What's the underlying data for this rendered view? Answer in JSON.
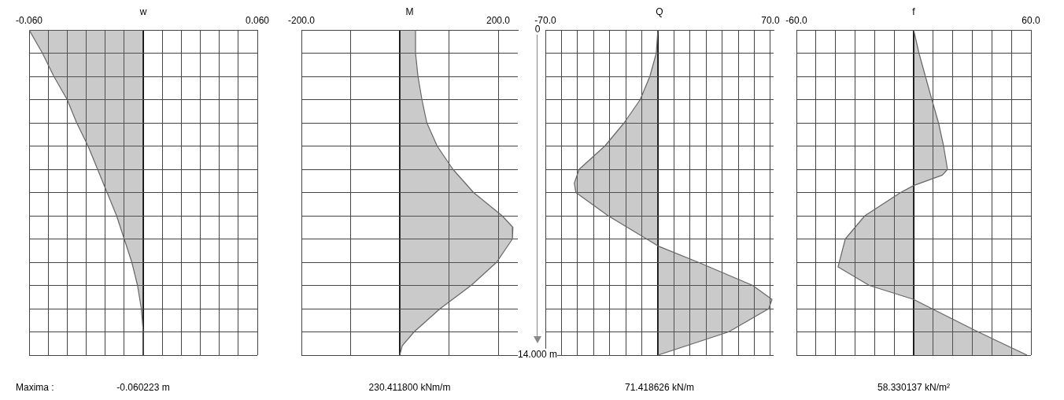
{
  "chart_data": [
    {
      "type": "area",
      "orientation": "horizontal",
      "xlabel": "w",
      "x": [
        0,
        1,
        2,
        3,
        4,
        5,
        6,
        7,
        8,
        9,
        10,
        11,
        12,
        13,
        14
      ],
      "series": [
        {
          "color": "#666666",
          "values": [
            -0.06,
            -0.053,
            -0.047,
            -0.04,
            -0.035,
            -0.029,
            -0.024,
            -0.019,
            -0.014,
            -0.01,
            -0.006,
            -0.003,
            -0.001,
            0,
            0
          ]
        }
      ],
      "xlim": [
        -0.06,
        0.06
      ],
      "xticks": [
        {
          "value": -0.06,
          "label": "-0.060"
        },
        {
          "value": -0.05,
          "label": null
        },
        {
          "value": -0.04,
          "label": null
        },
        {
          "value": -0.03,
          "label": null
        },
        {
          "value": -0.02,
          "label": null
        },
        {
          "value": -0.01,
          "label": null
        },
        {
          "value": 0,
          "label": null
        },
        {
          "value": 0.01,
          "label": null
        },
        {
          "value": 0.02,
          "label": null
        },
        {
          "value": 0.03,
          "label": null
        },
        {
          "value": 0.04,
          "label": null
        },
        {
          "value": 0.05,
          "label": null
        },
        {
          "value": 0.06,
          "label": "0.060"
        }
      ],
      "ylim": [
        14,
        0
      ],
      "yticks": [
        {
          "value": 0,
          "label": null
        },
        {
          "value": 1,
          "label": null
        },
        {
          "value": 2,
          "label": null
        },
        {
          "value": 3,
          "label": null
        },
        {
          "value": 4,
          "label": null
        },
        {
          "value": 5,
          "label": null
        },
        {
          "value": 6,
          "label": null
        },
        {
          "value": 7,
          "label": null
        },
        {
          "value": 8,
          "label": null
        },
        {
          "value": 9,
          "label": null
        },
        {
          "value": 10,
          "label": null
        },
        {
          "value": 11,
          "label": null
        },
        {
          "value": 12,
          "label": null
        },
        {
          "value": 13,
          "label": null
        },
        {
          "value": 14,
          "label": null
        }
      ],
      "tick_labels": "x",
      "grid": true,
      "legend": false,
      "annotations": [
        "Maxima :",
        "-0.060223 m"
      ]
    },
    {
      "type": "area",
      "orientation": "horizontal",
      "xlabel": "M",
      "x": [
        0,
        1,
        2,
        3,
        4,
        5,
        6,
        7,
        8,
        8.5,
        9,
        10,
        11,
        12,
        13,
        13.6,
        14
      ],
      "series": [
        {
          "color": "#666666",
          "values": [
            32,
            32,
            37,
            45,
            55,
            76,
            108,
            150,
            208,
            230,
            229,
            197,
            145,
            82,
            29,
            5,
            0
          ]
        }
      ],
      "xlim": [
        -200,
        240
      ],
      "xticks": [
        {
          "value": -200,
          "label": "-200.0"
        },
        {
          "value": -100,
          "label": null
        },
        {
          "value": 0,
          "label": null
        },
        {
          "value": 100,
          "label": null
        },
        {
          "value": 200,
          "label": "200.0"
        }
      ],
      "ylim": [
        14,
        0
      ],
      "yticks": [
        {
          "value": 0,
          "label": "0"
        },
        {
          "value": 1,
          "label": null
        },
        {
          "value": 2,
          "label": null
        },
        {
          "value": 3,
          "label": null
        },
        {
          "value": 4,
          "label": null
        },
        {
          "value": 5,
          "label": null
        },
        {
          "value": 6,
          "label": null
        },
        {
          "value": 7,
          "label": null
        },
        {
          "value": 8,
          "label": null
        },
        {
          "value": 9,
          "label": null
        },
        {
          "value": 10,
          "label": null
        },
        {
          "value": 11,
          "label": null
        },
        {
          "value": 12,
          "label": null
        },
        {
          "value": 13,
          "label": null
        },
        {
          "value": 14,
          "label": "14.000 m"
        }
      ],
      "grid": true,
      "legend": false,
      "annotations": [
        "230.411800 kNm/m"
      ]
    },
    {
      "type": "area",
      "orientation": "horizontal",
      "xlabel": "Q",
      "x": [
        0,
        1,
        2,
        3,
        4,
        5,
        6,
        6.6,
        7,
        8,
        9,
        9.3,
        10,
        11,
        11.6,
        12,
        13,
        14
      ],
      "series": [
        {
          "color": "#666666",
          "values": [
            0,
            -1,
            -5,
            -11,
            -21,
            -33,
            -49,
            -52,
            -51,
            -31,
            -7,
            0,
            25,
            59,
            71,
            69,
            44,
            0
          ]
        }
      ],
      "xlim": [
        -70,
        72
      ],
      "xticks": [
        {
          "value": -70,
          "label": "-70.0"
        },
        {
          "value": -60,
          "label": null
        },
        {
          "value": -50,
          "label": null
        },
        {
          "value": -40,
          "label": null
        },
        {
          "value": -30,
          "label": null
        },
        {
          "value": -20,
          "label": null
        },
        {
          "value": -10,
          "label": null
        },
        {
          "value": 0,
          "label": null
        },
        {
          "value": 10,
          "label": null
        },
        {
          "value": 20,
          "label": null
        },
        {
          "value": 30,
          "label": null
        },
        {
          "value": 40,
          "label": null
        },
        {
          "value": 50,
          "label": null
        },
        {
          "value": 60,
          "label": null
        },
        {
          "value": 70,
          "label": "70.0"
        }
      ],
      "ylim": [
        14,
        0
      ],
      "yticks": [
        {
          "value": 0,
          "label": null
        },
        {
          "value": 1,
          "label": null
        },
        {
          "value": 2,
          "label": null
        },
        {
          "value": 3,
          "label": null
        },
        {
          "value": 4,
          "label": null
        },
        {
          "value": 5,
          "label": null
        },
        {
          "value": 6,
          "label": null
        },
        {
          "value": 7,
          "label": null
        },
        {
          "value": 8,
          "label": null
        },
        {
          "value": 9,
          "label": null
        },
        {
          "value": 10,
          "label": null
        },
        {
          "value": 11,
          "label": null
        },
        {
          "value": 12,
          "label": null
        },
        {
          "value": 13,
          "label": null
        },
        {
          "value": 14,
          "label": null
        }
      ],
      "tick_labels": "x",
      "grid": true,
      "legend": false,
      "annotations": [
        "71.418626 kN/m"
      ]
    },
    {
      "type": "area",
      "orientation": "horizontal",
      "xlabel": "f",
      "x": [
        0,
        1,
        2,
        3,
        4,
        5,
        6,
        6.25,
        6.7,
        7,
        8,
        9,
        10.2,
        11,
        11.6,
        12,
        13,
        14
      ],
      "series": [
        {
          "color": "#666666",
          "values": [
            0,
            2.7,
            6,
            9.3,
            12.7,
            15.3,
            17.3,
            14.7,
            0,
            -6.7,
            -25,
            -35,
            -38.7,
            -22.7,
            0,
            9.3,
            33,
            58
          ]
        }
      ],
      "xlim": [
        -60,
        60
      ],
      "xticks": [
        {
          "value": -60,
          "label": "-60.0"
        },
        {
          "value": -50,
          "label": null
        },
        {
          "value": -40,
          "label": null
        },
        {
          "value": -30,
          "label": null
        },
        {
          "value": -20,
          "label": null
        },
        {
          "value": -10,
          "label": null
        },
        {
          "value": 0,
          "label": null
        },
        {
          "value": 10,
          "label": null
        },
        {
          "value": 20,
          "label": null
        },
        {
          "value": 30,
          "label": null
        },
        {
          "value": 40,
          "label": null
        },
        {
          "value": 50,
          "label": null
        },
        {
          "value": 60,
          "label": "60.0"
        }
      ],
      "ylim": [
        14,
        0
      ],
      "yticks": [
        {
          "value": 0,
          "label": null
        },
        {
          "value": 1,
          "label": null
        },
        {
          "value": 2,
          "label": null
        },
        {
          "value": 3,
          "label": null
        },
        {
          "value": 4,
          "label": null
        },
        {
          "value": 5,
          "label": null
        },
        {
          "value": 6,
          "label": null
        },
        {
          "value": 7,
          "label": null
        },
        {
          "value": 8,
          "label": null
        },
        {
          "value": 9,
          "label": null
        },
        {
          "value": 10,
          "label": null
        },
        {
          "value": 11,
          "label": null
        },
        {
          "value": 12,
          "label": null
        },
        {
          "value": 13,
          "label": null
        },
        {
          "value": 14,
          "label": null
        }
      ],
      "tick_labels": "x",
      "grid": true,
      "legend": false,
      "annotations": [
        "58.330137 kN/m²"
      ]
    }
  ]
}
